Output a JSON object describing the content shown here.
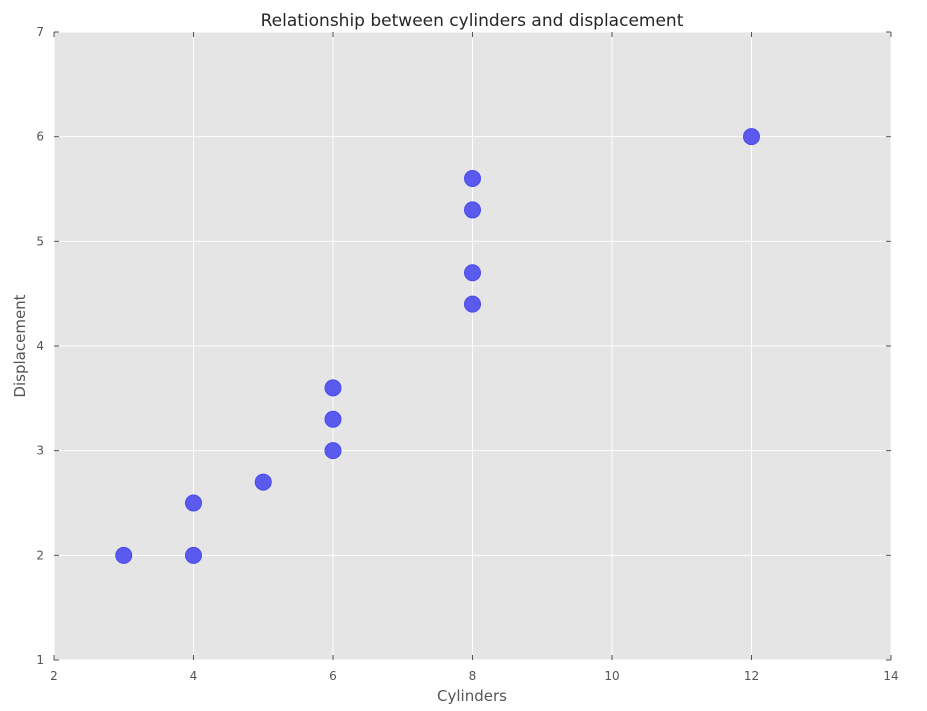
{
  "chart_data": {
    "type": "scatter",
    "title": "Relationship between cylinders and displacement",
    "xlabel": "Cylinders",
    "ylabel": "Displacement",
    "xlim": [
      2,
      14
    ],
    "ylim": [
      1,
      7
    ],
    "xticks": [
      "2",
      "4",
      "6",
      "8",
      "10",
      "12",
      "14"
    ],
    "yticks": [
      "1",
      "2",
      "3",
      "4",
      "5",
      "6",
      "7"
    ],
    "grid": true,
    "background_color": "#e5e5e5",
    "marker_color": "#4a4aee",
    "series": [
      {
        "points": [
          {
            "x": 3,
            "y": 2.0
          },
          {
            "x": 4,
            "y": 2.0
          },
          {
            "x": 4,
            "y": 2.5
          },
          {
            "x": 5,
            "y": 2.7
          },
          {
            "x": 6,
            "y": 3.0
          },
          {
            "x": 6,
            "y": 3.3
          },
          {
            "x": 6,
            "y": 3.6
          },
          {
            "x": 8,
            "y": 4.4
          },
          {
            "x": 8,
            "y": 4.7
          },
          {
            "x": 8,
            "y": 5.3
          },
          {
            "x": 8,
            "y": 5.6
          },
          {
            "x": 12,
            "y": 6.0
          }
        ]
      }
    ]
  }
}
